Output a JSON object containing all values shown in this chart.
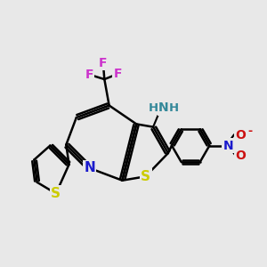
{
  "bg_color": "#e8e8e8",
  "bond_color": "#000000",
  "bond_width": 1.8,
  "fig_size": [
    3.0,
    3.0
  ],
  "dpi": 100,
  "atom_colors": {
    "S": "#cccc00",
    "N_pyridine": "#1a1acc",
    "NH2_N": "#338899",
    "NH2_H": "#338899",
    "F": "#cc33cc",
    "N_plus": "#1a1acc",
    "O_minus": "#cc1111",
    "O": "#cc1111"
  },
  "font_size": 10,
  "xlim": [
    0,
    10
  ],
  "ylim": [
    0,
    10
  ]
}
